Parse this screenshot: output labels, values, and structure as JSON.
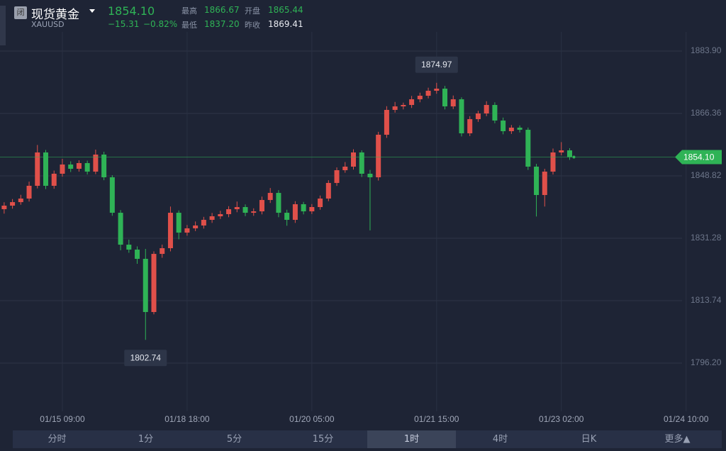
{
  "header": {
    "badge": "闭",
    "name": "现货黄金",
    "symbol": "XAUUSD",
    "price": "1854.10",
    "change": "−15.31",
    "change_pct": "−0.82%",
    "stats": [
      {
        "label": "最高",
        "value": "1866.67"
      },
      {
        "label": "开盘",
        "value": "1865.44"
      },
      {
        "label": "最低",
        "value": "1837.20"
      },
      {
        "label": "昨收",
        "value": "1869.41"
      }
    ]
  },
  "tabs": [
    "分时",
    "1分",
    "5分",
    "15分",
    "1时",
    "4时",
    "日K",
    "更多▲"
  ],
  "chart_data": {
    "type": "candlestick",
    "up_color": "#e0504a",
    "down_color": "#2fb356",
    "grid": true,
    "ylim": [
      1782.65,
      1889.28
    ],
    "yticks": [
      {
        "value": 1883.9,
        "label": "1883.90"
      },
      1866.36,
      1848.82,
      1831.28,
      1813.74,
      {
        "value": 1796.2,
        "label": "1796.20"
      }
    ],
    "categories": [
      null,
      null,
      null,
      null,
      null,
      null,
      null,
      "01/15 09:00",
      null,
      null,
      null,
      null,
      null,
      null,
      null,
      null,
      null,
      null,
      null,
      null,
      null,
      null,
      "01/18 18:00",
      null,
      null,
      null,
      null,
      null,
      null,
      null,
      null,
      null,
      null,
      null,
      null,
      null,
      null,
      "01/20 05:00",
      null,
      null,
      null,
      null,
      null,
      null,
      null,
      null,
      null,
      null,
      null,
      null,
      null,
      null,
      "01/21 15:00",
      null,
      null,
      null,
      null,
      null,
      null,
      null,
      null,
      null,
      null,
      null,
      null,
      null,
      null,
      "01/23 02:00",
      null,
      null,
      null,
      null,
      null,
      null,
      null,
      null,
      null,
      null,
      null,
      null,
      null,
      null,
      "01/24 10:00",
      null,
      null
    ],
    "open": [
      1839.45,
      1840.45,
      1841.44,
      1842.44,
      1846.03,
      1855.4,
      1846.03,
      1849.42,
      1852.01,
      1850.81,
      1852.41,
      1850.01,
      1854.8,
      1848.42,
      1838.45,
      1829.48,
      1828.09,
      1825.5,
      1810.55,
      1826.89,
      1828.49,
      1838.45,
      1832.87,
      1834.07,
      1834.87,
      1836.46,
      1837.46,
      1838.06,
      1839.45,
      1840.05,
      1838.45,
      1838.85,
      1842.04,
      1844.03,
      1838.45,
      1836.46,
      1840.85,
      1838.85,
      1840.05,
      1842.44,
      1846.83,
      1850.41,
      1851.41,
      1855.4,
      1849.42,
      1848.42,
      1860.38,
      1867.36,
      1868.35,
      1868.75,
      1870.35,
      1871.34,
      1872.74,
      1873.33,
      1868.35,
      1870.35,
      1860.78,
      1864.76,
      1866.36,
      1868.75,
      1864.37,
      1861.38,
      1862.37,
      1861.77,
      1851.41,
      1843.44,
      1850.01,
      1855.4,
      1855.99,
      null,
      null,
      null,
      null,
      null,
      null,
      null,
      null,
      null,
      null,
      null,
      null,
      null,
      null,
      null,
      null
    ],
    "high": [
      1841.4,
      1842.3,
      1843.5,
      1847.2,
      1857.5,
      1856.1,
      1850.3,
      1853.6,
      1852.9,
      1853.2,
      1853.1,
      1856.2,
      1855.6,
      1849.0,
      1839.2,
      1830.9,
      1829.0,
      1828.3,
      1827.6,
      1829.5,
      1840.2,
      1839.1,
      1835.0,
      1836.0,
      1837.3,
      1838.4,
      1839.0,
      1840.3,
      1841.6,
      1840.8,
      1839.7,
      1843.0,
      1845.4,
      1844.8,
      1839.3,
      1841.7,
      1841.5,
      1840.9,
      1843.3,
      1847.6,
      1851.2,
      1852.7,
      1856.3,
      1856.0,
      1850.5,
      1861.2,
      1868.4,
      1869.6,
      1869.4,
      1871.3,
      1872.2,
      1873.6,
      1874.97,
      1874.1,
      1871.4,
      1870.9,
      1865.6,
      1867.1,
      1869.8,
      1869.5,
      1865.2,
      1863.1,
      1863.0,
      1862.4,
      1852.2,
      1850.8,
      1856.5,
      1858.3,
      1856.6,
      null,
      null,
      null,
      null,
      null,
      null,
      null,
      null,
      null,
      null,
      null,
      null,
      null,
      null,
      null,
      null
    ],
    "low": [
      1838.2,
      1839.6,
      1840.7,
      1841.6,
      1845.3,
      1845.1,
      1845.2,
      1848.6,
      1849.9,
      1850.0,
      1849.2,
      1849.3,
      1847.6,
      1837.6,
      1827.9,
      1827.2,
      1824.1,
      1802.74,
      1809.9,
      1825.8,
      1827.6,
      1831.0,
      1832.0,
      1833.3,
      1834.0,
      1835.6,
      1836.7,
      1837.2,
      1838.6,
      1837.5,
      1837.6,
      1838.0,
      1841.2,
      1837.2,
      1834.8,
      1835.6,
      1838.0,
      1838.1,
      1839.3,
      1841.7,
      1846.0,
      1849.7,
      1850.6,
      1848.5,
      1833.5,
      1847.5,
      1859.5,
      1866.6,
      1867.5,
      1867.9,
      1869.5,
      1870.6,
      1871.9,
      1867.5,
      1867.6,
      1859.9,
      1860.0,
      1864.0,
      1865.6,
      1863.6,
      1860.5,
      1860.6,
      1861.0,
      1850.5,
      1837.4,
      1840.2,
      1849.2,
      1854.6,
      1853.3,
      null,
      null,
      null,
      null,
      null,
      null,
      null,
      null,
      null,
      null,
      null,
      null,
      null,
      null,
      null,
      null
    ],
    "close": [
      1840.45,
      1841.44,
      1842.44,
      1846.03,
      1855.4,
      1846.03,
      1849.42,
      1852.01,
      1850.81,
      1852.41,
      1850.01,
      1854.8,
      1848.42,
      1838.45,
      1829.48,
      1828.09,
      1825.5,
      1810.55,
      1826.89,
      1828.49,
      1838.45,
      1832.87,
      1834.07,
      1834.87,
      1836.46,
      1837.46,
      1838.06,
      1839.45,
      1840.05,
      1838.45,
      1838.85,
      1842.04,
      1844.03,
      1838.45,
      1836.46,
      1840.85,
      1838.85,
      1840.05,
      1842.44,
      1846.83,
      1850.41,
      1851.41,
      1855.4,
      1849.42,
      1848.42,
      1860.38,
      1867.36,
      1868.35,
      1868.75,
      1870.35,
      1871.34,
      1872.74,
      1873.33,
      1868.35,
      1870.35,
      1860.78,
      1864.76,
      1866.36,
      1868.75,
      1864.37,
      1861.38,
      1862.37,
      1861.77,
      1851.41,
      1843.44,
      1850.01,
      1855.4,
      1855.99,
      1854.1,
      null,
      null,
      null,
      null,
      null,
      null,
      null,
      null,
      null,
      null,
      null,
      null,
      null,
      null,
      null,
      null
    ]
  }
}
